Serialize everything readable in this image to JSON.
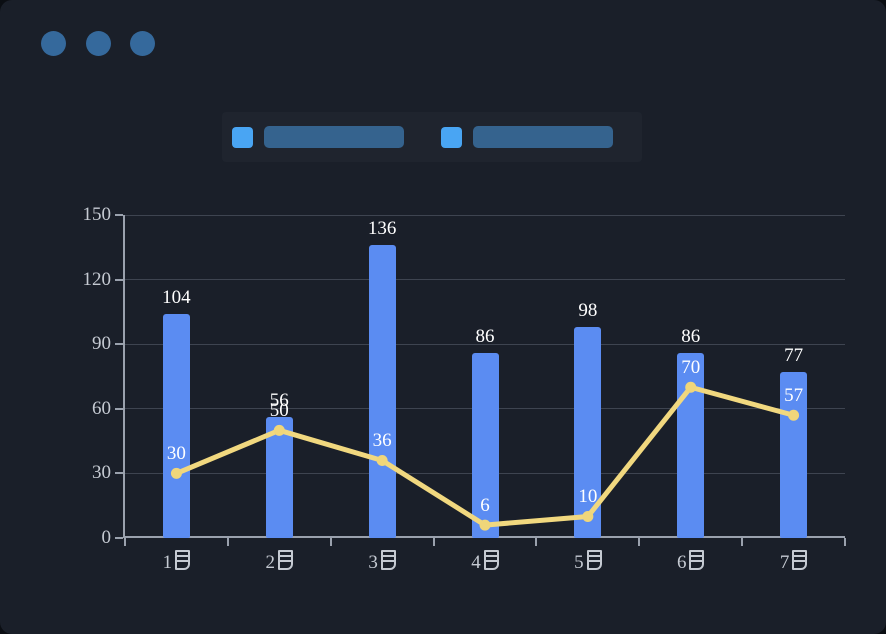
{
  "window": {
    "controls": {
      "dot_color": "#35699c"
    }
  },
  "legend": {
    "items": [
      {
        "swatch_color": "#49a5f3",
        "pill_color": "#35638e",
        "label_text": ""
      },
      {
        "swatch_color": "#49a5f3",
        "pill_color": "#35638e",
        "label_text": ""
      }
    ],
    "labels_redacted": true
  },
  "colors": {
    "page_background": "#0b0e13",
    "window_background": "#1a1f29",
    "grid": "#3e4450",
    "axis": "#9aa1ad",
    "axis_text": "#c5cad2",
    "value_text": "#ffffff"
  },
  "chart_data": {
    "type": "bar",
    "categories": [
      "1月",
      "2月",
      "3月",
      "4月",
      "5月",
      "6月",
      "7月"
    ],
    "series": [
      {
        "name": "bar-series",
        "type": "bar",
        "color": "#5b8cf2",
        "values": [
          104,
          56,
          136,
          86,
          98,
          86,
          77
        ]
      },
      {
        "name": "line-series",
        "type": "line",
        "color": "#f1d87f",
        "marker_color": "#f0d67a",
        "values": [
          30,
          50,
          36,
          6,
          10,
          70,
          57
        ]
      }
    ],
    "title": "",
    "xlabel": "",
    "ylabel": "",
    "ylim": [
      0,
      150
    ],
    "yticks": [
      0,
      30,
      60,
      90,
      120,
      150
    ],
    "grid": true,
    "legend_position": "top",
    "value_labels": true
  }
}
